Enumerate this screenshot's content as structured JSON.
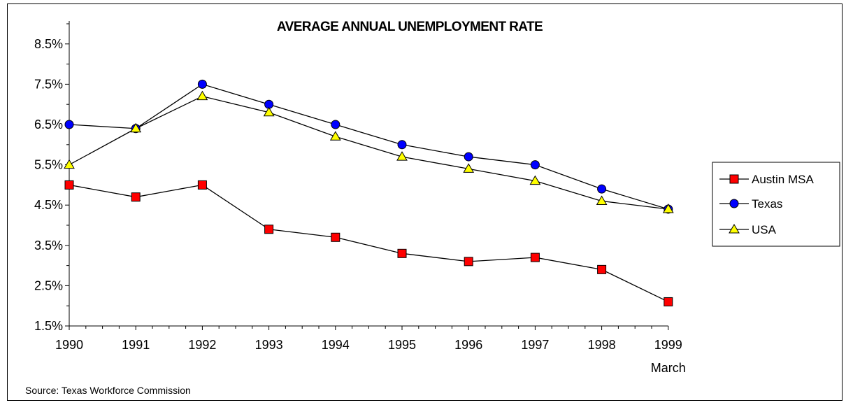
{
  "chart_data": {
    "type": "line",
    "title": "AVERAGE ANNUAL UNEMPLOYMENT RATE",
    "x": [
      "1990",
      "1991",
      "1992",
      "1993",
      "1994",
      "1995",
      "1996",
      "1997",
      "1998",
      "1999"
    ],
    "x_sublabels": [
      "",
      "",
      "",
      "",
      "",
      "",
      "",
      "",
      "",
      "March"
    ],
    "y_ticks": [
      "8.5%",
      "7.5%",
      "6.5%",
      "5.5%",
      "4.5%",
      "3.5%",
      "2.5%",
      "1.5%"
    ],
    "ylim": [
      1.5,
      9.0
    ],
    "grid": false,
    "legend_position": "right",
    "series": [
      {
        "name": "Austin MSA",
        "marker": "square",
        "color": "#ff0000",
        "values": [
          5.0,
          4.7,
          5.0,
          3.9,
          3.7,
          3.3,
          3.1,
          3.2,
          2.9,
          2.1
        ]
      },
      {
        "name": "Texas",
        "marker": "circle",
        "color": "#0000ff",
        "values": [
          6.5,
          6.4,
          7.5,
          7.0,
          6.5,
          6.0,
          5.7,
          5.5,
          4.9,
          4.4
        ]
      },
      {
        "name": "USA",
        "marker": "triangle",
        "color": "#ffff00",
        "values": [
          5.5,
          6.4,
          7.2,
          6.8,
          6.2,
          5.7,
          5.4,
          5.1,
          4.6,
          4.4
        ]
      }
    ],
    "source": "Source: Texas Workforce Commission"
  }
}
